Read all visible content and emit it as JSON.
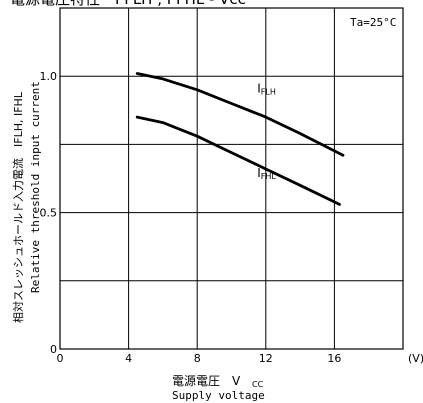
{
  "chart_data": {
    "type": "line",
    "title": "電源電圧特性　I FLH , I FHL - Vcc",
    "annotation": "Ta=25°C",
    "xlabel_ja": "電源電圧　V",
    "xlabel_sub": "CC",
    "xlabel_en": "Supply voltage",
    "x_unit": "(V)",
    "ylabel_ja": "相対スレッシュホールド入力電流　IFLH, IFHL",
    "ylabel_en": "Relative threshold input current",
    "xlim": [
      0,
      20
    ],
    "ylim": [
      0,
      1.25
    ],
    "x_ticks": [
      "0",
      "4",
      "8",
      "12",
      "16"
    ],
    "x_tick_values": [
      0,
      4,
      8,
      12,
      16
    ],
    "y_ticks": [
      "0",
      "0.5",
      "1.0"
    ],
    "y_tick_values": [
      0,
      0.5,
      1.0
    ],
    "grid": true,
    "series": [
      {
        "name": "IFLH",
        "label_main": "I",
        "label_sub": "FLH",
        "x": [
          4.5,
          6,
          8,
          10,
          12,
          14,
          16.5
        ],
        "y": [
          1.01,
          0.99,
          0.95,
          0.9,
          0.85,
          0.79,
          0.71
        ]
      },
      {
        "name": "IFHL",
        "label_main": "I",
        "label_sub": "FHL",
        "x": [
          4.5,
          6,
          8,
          10,
          12,
          14,
          16.3
        ],
        "y": [
          0.85,
          0.83,
          0.78,
          0.72,
          0.66,
          0.6,
          0.53
        ]
      }
    ]
  }
}
